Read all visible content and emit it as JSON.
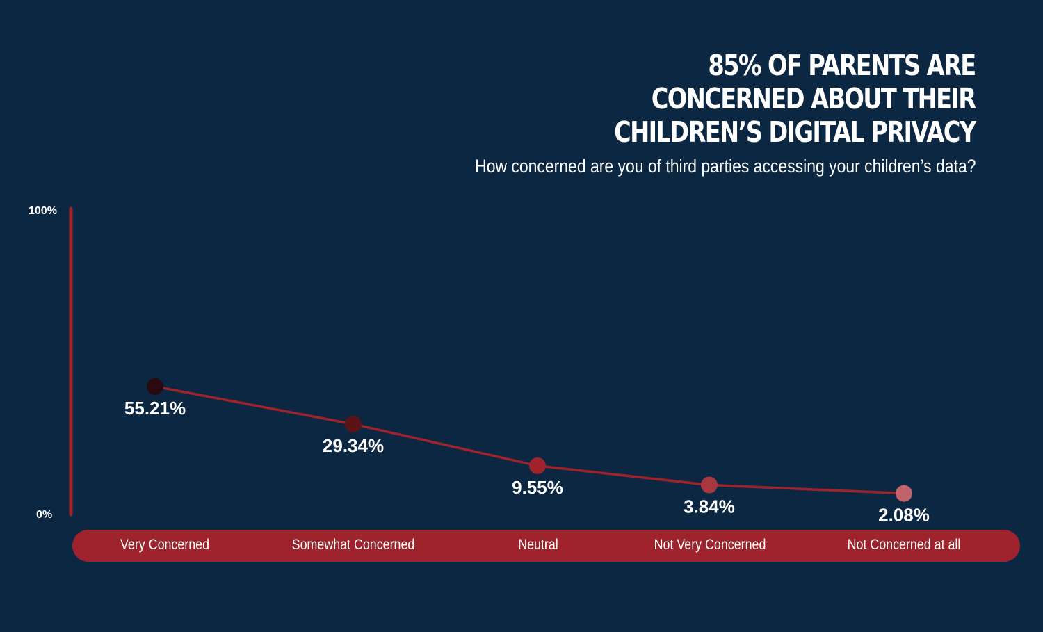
{
  "chart_data": {
    "type": "line",
    "title": "85% OF PARENTS ARE CONCERNED ABOUT THEIR CHILDREN'S DIGITAL PRIVACY",
    "title_lines": [
      "85% OF PARENTS ARE",
      "CONCERNED ABOUT THEIR",
      "CHILDREN’S DIGITAL PRIVACY"
    ],
    "subtitle": "How concerned are you of third parties accessing your children’s data?",
    "categories": [
      "Very Concerned",
      "Somewhat Concerned",
      "Neutral",
      "Not Very Concerned",
      "Not Concerned at all"
    ],
    "values": [
      55.21,
      29.34,
      9.55,
      3.84,
      2.08
    ],
    "data_labels": [
      "55.21%",
      "29.34%",
      "9.55%",
      "3.84%",
      "2.08%"
    ],
    "y_tick_labels": [
      "100%",
      "0%"
    ],
    "ylim": [
      0,
      100
    ],
    "grid": false,
    "colors": {
      "background": "#0b2742",
      "line": "#9e232c",
      "axis": "#9e232c",
      "points": [
        "#2a0a10",
        "#5a1418",
        "#9e232c",
        "#a8383f",
        "#c0636a"
      ]
    }
  }
}
